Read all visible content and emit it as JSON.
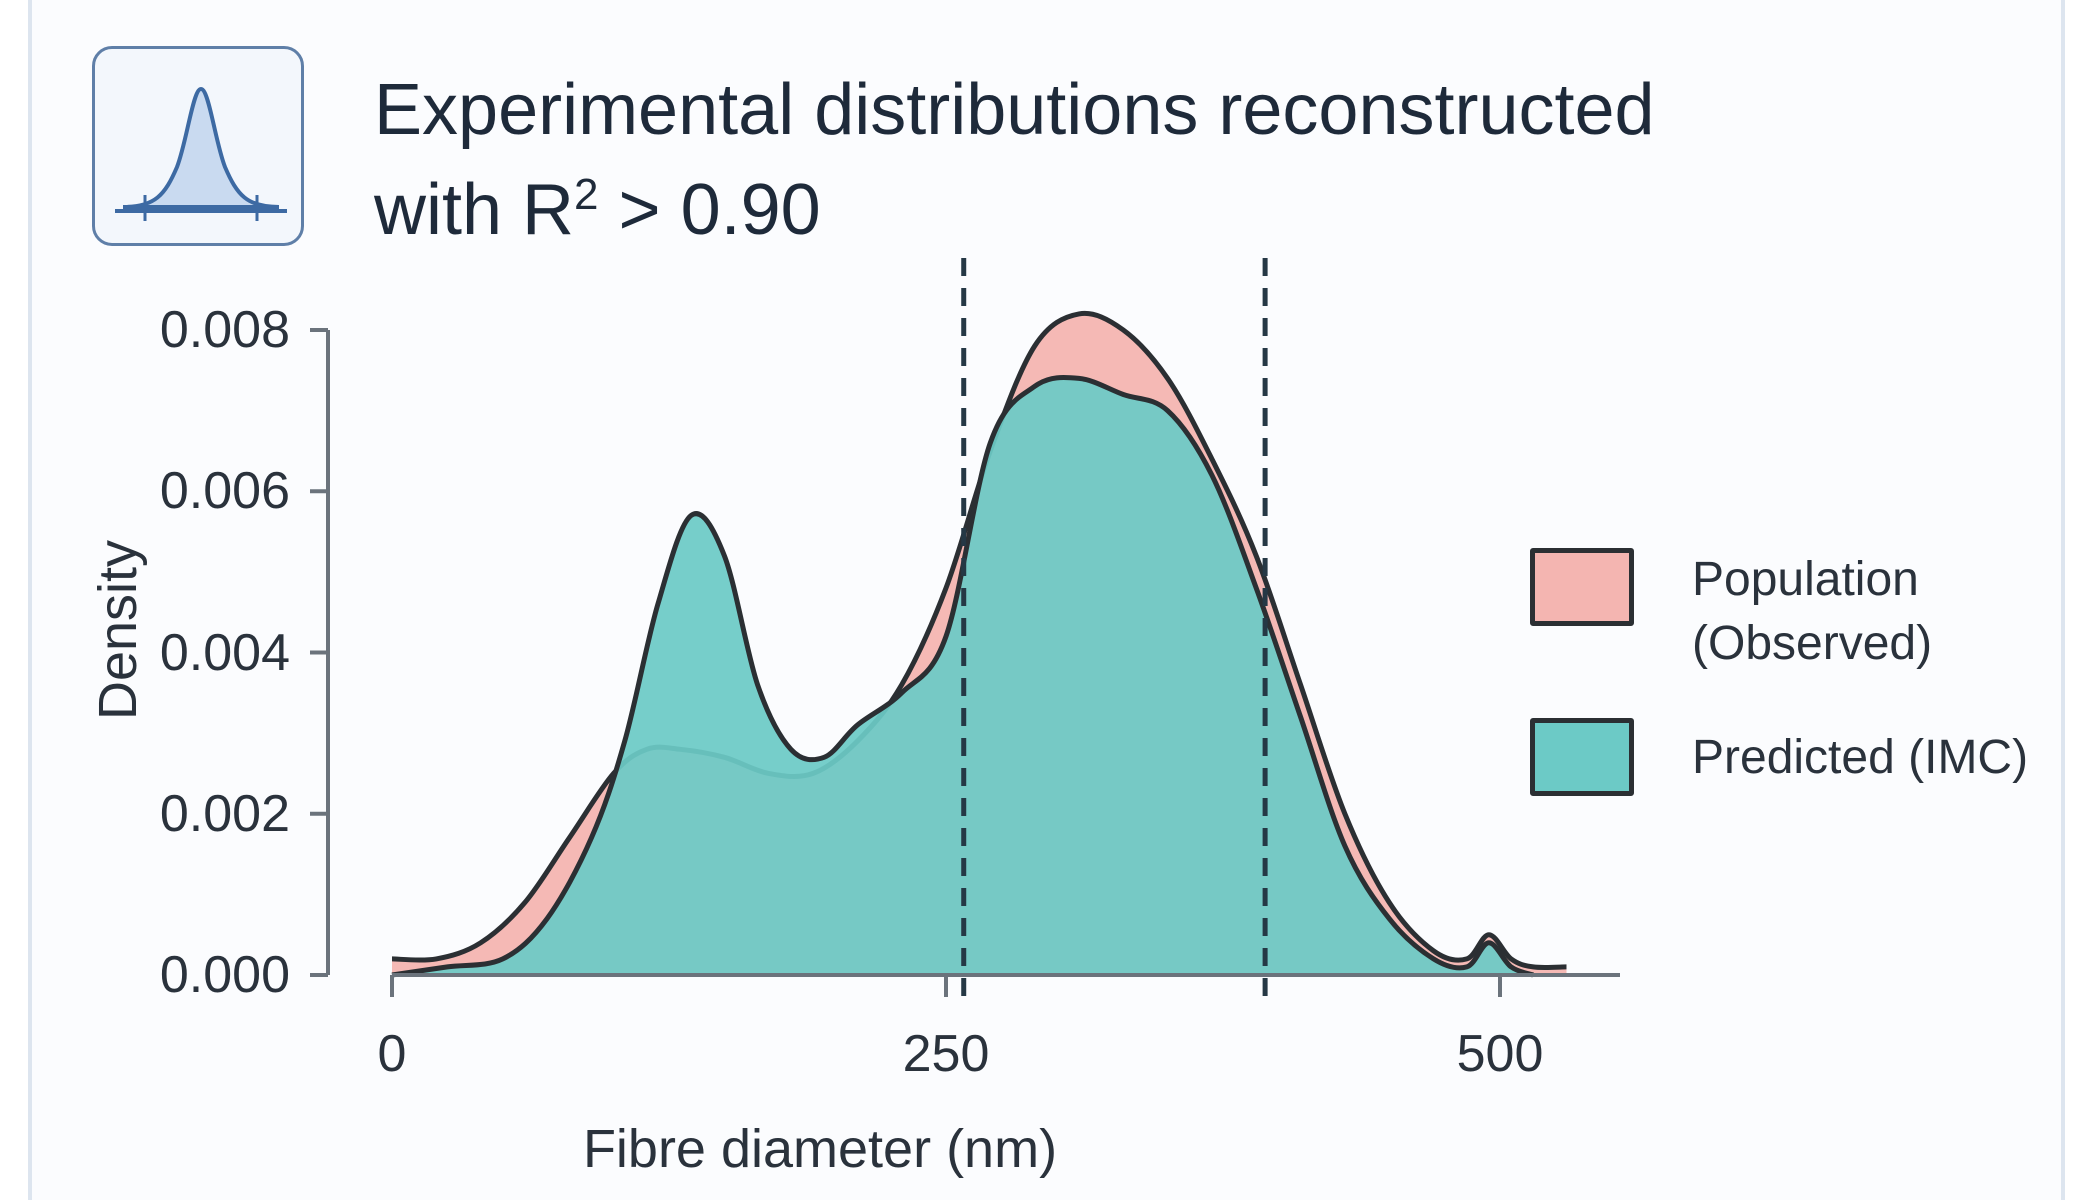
{
  "title": {
    "line1": "Experimental distributions reconstructed",
    "line2_prefix": "with R",
    "line2_sup": "2",
    "line2_suffix": " > 0.90"
  },
  "icon": "bell-curve-icon",
  "chart_data": {
    "type": "area",
    "xlabel": "Fibre diameter (nm)",
    "ylabel": "Density",
    "xlim": [
      0,
      550
    ],
    "ylim": [
      0,
      0.008
    ],
    "xticks": [
      0,
      250,
      500
    ],
    "xtick_labels": [
      "0",
      "250",
      "500"
    ],
    "yticks": [
      0,
      0.002,
      0.004,
      0.006,
      0.008
    ],
    "ytick_labels": [
      "0.000",
      "0.002",
      "0.004",
      "0.006",
      "0.008"
    ],
    "vlines": [
      258,
      394
    ],
    "grid": false,
    "legend_position": "right",
    "series": [
      {
        "name": "Population (Observed)",
        "color": "#f4b5b1",
        "x": [
          0,
          20,
          40,
          60,
          80,
          100,
          115,
          130,
          150,
          170,
          190,
          210,
          230,
          250,
          270,
          290,
          310,
          330,
          350,
          370,
          390,
          410,
          430,
          450,
          470,
          485,
          495,
          505,
          515,
          530
        ],
        "values": [
          0.0002,
          0.0002,
          0.0004,
          0.0009,
          0.0017,
          0.0025,
          0.0028,
          0.0028,
          0.0027,
          0.0025,
          0.0025,
          0.0029,
          0.0036,
          0.0048,
          0.0065,
          0.0078,
          0.0082,
          0.008,
          0.0074,
          0.0064,
          0.0052,
          0.0036,
          0.002,
          0.0009,
          0.0003,
          0.0002,
          0.0005,
          0.0002,
          0.0001,
          0.0001
        ]
      },
      {
        "name": "Predicted (IMC)",
        "color": "#6ccac6",
        "x": [
          0,
          25,
          50,
          70,
          90,
          105,
          120,
          135,
          150,
          165,
          180,
          195,
          210,
          230,
          250,
          270,
          290,
          310,
          330,
          350,
          370,
          390,
          410,
          430,
          450,
          470,
          485,
          495,
          505,
          515
        ],
        "values": [
          0.0,
          0.0001,
          0.0002,
          0.0007,
          0.0017,
          0.0029,
          0.0046,
          0.0057,
          0.0052,
          0.0036,
          0.0028,
          0.0027,
          0.0031,
          0.0035,
          0.0042,
          0.0066,
          0.0073,
          0.0074,
          0.0072,
          0.007,
          0.0062,
          0.0048,
          0.0032,
          0.0016,
          0.0007,
          0.0002,
          0.0001,
          0.0004,
          0.0001,
          0.0
        ]
      }
    ]
  },
  "legend": {
    "observed": {
      "line1": "Population",
      "line2": "(Observed)"
    },
    "predicted": {
      "line1": "Predicted (IMC)"
    }
  }
}
